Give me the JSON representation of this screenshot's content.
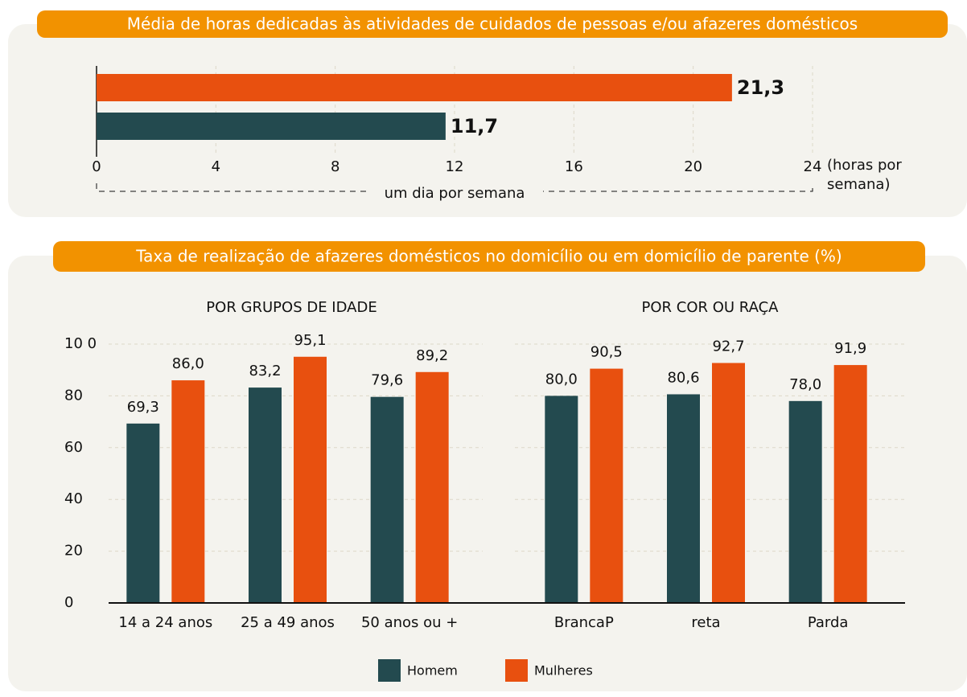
{
  "chart_data": [
    {
      "type": "hbar",
      "title": "Média de horas dedicadas às atividades de cuidados de pessoas e/ou afazeres domésticos",
      "categories": [
        null,
        null
      ],
      "values": [
        21.3,
        11.7
      ],
      "value_labels": [
        "21,3",
        "11,7"
      ],
      "colors": [
        "#e8500f",
        "#234a4f"
      ],
      "label_colors": [
        "#e8500f",
        "#111111"
      ],
      "xlim": [
        0,
        24
      ],
      "xticks": [
        0,
        4,
        8,
        12,
        16,
        20,
        24
      ],
      "x_label": "(horas por semana)",
      "annotation": "um dia por semana",
      "grid": true
    },
    {
      "type": "bar",
      "title": "Taxa de realização de afazeres domésticos no domicílio ou em domicílio de parente (%)",
      "panels": [
        {
          "subtitle": "POR GRUPOS DE IDADE",
          "categories": [
            "14 a 24 anos",
            "25 a 49 anos",
            "50 anos ou +"
          ]
        },
        {
          "subtitle": "POR COR OU RAÇA",
          "categories": [
            "BrancaP",
            "reta",
            "Parda"
          ]
        }
      ],
      "series": [
        {
          "name": "Homem",
          "color": "#234a4f",
          "values": [
            69.3,
            83.2,
            79.6,
            80.0,
            80.6,
            78.0
          ],
          "value_labels": [
            "69,3",
            "83,2",
            "79,6",
            "80,0",
            "80,6",
            "78,0"
          ]
        },
        {
          "name": "Mulheres",
          "color": "#e8500f",
          "values": [
            86.0,
            95.1,
            89.2,
            90.5,
            92.7,
            91.9
          ],
          "value_labels": [
            "86,0",
            "95,1",
            "89,2",
            "90,5",
            "92,7",
            "91,9"
          ]
        }
      ],
      "ylim": [
        0,
        100
      ],
      "yticks": [
        0,
        20,
        40,
        60,
        80,
        {
          "value": 100,
          "label": "10 0"
        }
      ],
      "grid": true,
      "legend": "bottom"
    }
  ]
}
